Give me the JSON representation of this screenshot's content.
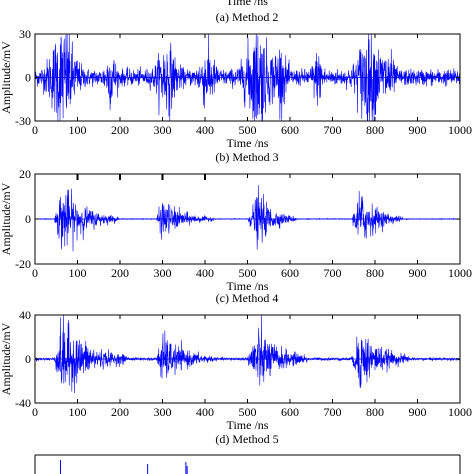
{
  "figure": {
    "top_xlabel": "Time /ns",
    "captions": [
      "(a) Method 2",
      "(b) Method 3",
      "(c) Method 4",
      "(d) Method 5"
    ]
  },
  "chart_data": [
    {
      "type": "line",
      "caption": "(a) Method 2",
      "xlabel": "Time /ns",
      "ylabel": "Amplitude/mV",
      "xlim": [
        0,
        1000
      ],
      "ylim": [
        -30,
        30
      ],
      "xticks": [
        0,
        100,
        200,
        300,
        400,
        500,
        600,
        700,
        800,
        900,
        1000
      ],
      "yticks": [
        -30,
        0,
        30
      ],
      "color": "#0000ff",
      "noise_floor": 5,
      "bursts": [
        {
          "center": 65,
          "width": 30,
          "peak": 29
        },
        {
          "center": 178,
          "width": 12,
          "peak": 14
        },
        {
          "center": 310,
          "width": 22,
          "peak": 18
        },
        {
          "center": 405,
          "width": 18,
          "peak": 15
        },
        {
          "center": 523,
          "width": 28,
          "peak": 29
        },
        {
          "center": 575,
          "width": 16,
          "peak": 16
        },
        {
          "center": 665,
          "width": 12,
          "peak": 12
        },
        {
          "center": 785,
          "width": 26,
          "peak": 28
        },
        {
          "center": 830,
          "width": 14,
          "peak": 14
        }
      ]
    },
    {
      "type": "line",
      "caption": "(b) Method 3",
      "xlabel": "Time /ns",
      "ylabel": "Amplitude/mV",
      "xlim": [
        0,
        1000
      ],
      "ylim": [
        -20,
        20
      ],
      "xticks": [
        0,
        100,
        200,
        300,
        400,
        500,
        600,
        700,
        800,
        900,
        1000
      ],
      "yticks": [
        -20,
        0,
        20
      ],
      "color": "#0000ff",
      "noise_floor": 0.15,
      "bursts": [
        {
          "start": 45,
          "end": 195,
          "peak": 14,
          "peak_at": 65
        },
        {
          "start": 285,
          "end": 420,
          "peak": 8,
          "peak_at": 300
        },
        {
          "start": 500,
          "end": 615,
          "peak": 11,
          "peak_at": 525
        },
        {
          "start": 745,
          "end": 865,
          "peak": 12,
          "peak_at": 765
        }
      ],
      "top_marks": [
        100,
        200,
        300,
        400
      ]
    },
    {
      "type": "line",
      "caption": "(c) Method 4",
      "xlabel": "Time /ns",
      "ylabel": "Amplitude/mV",
      "xlim": [
        0,
        1000
      ],
      "ylim": [
        -40,
        40
      ],
      "xticks": [
        0,
        100,
        200,
        300,
        400,
        500,
        600,
        700,
        800,
        900,
        1000
      ],
      "yticks": [
        -40,
        0,
        40
      ],
      "color": "#0000ff",
      "noise_floor": 1.2,
      "bursts": [
        {
          "start": 45,
          "end": 215,
          "peak": 32,
          "peak_at": 65
        },
        {
          "start": 285,
          "end": 420,
          "peak": 20,
          "peak_at": 300
        },
        {
          "start": 500,
          "end": 640,
          "peak": 28,
          "peak_at": 522
        },
        {
          "start": 745,
          "end": 880,
          "peak": 26,
          "peak_at": 765
        }
      ]
    },
    {
      "type": "line",
      "caption": "(d) Method 5",
      "xlim": [
        0,
        1000
      ],
      "color": "#0000ff",
      "partial": true
    }
  ]
}
